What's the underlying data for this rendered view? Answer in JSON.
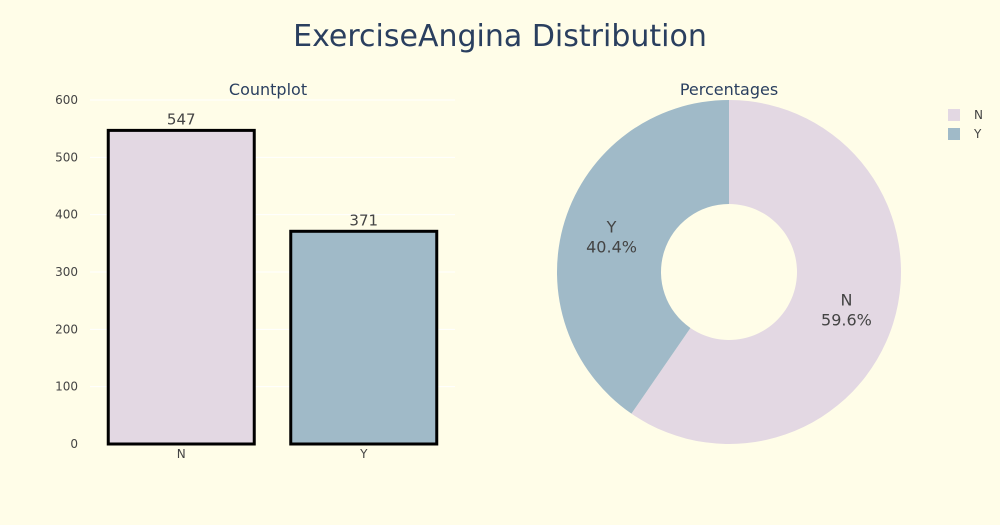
{
  "title": "ExerciseAngina Distribution",
  "chart_data": [
    {
      "type": "bar",
      "title": "Countplot",
      "categories": [
        "N",
        "Y"
      ],
      "values": [
        547,
        371
      ],
      "value_labels": [
        "547",
        "371"
      ],
      "ylim": [
        0,
        600
      ],
      "yticks": [
        "0",
        "100",
        "200",
        "300",
        "400",
        "500",
        "600"
      ],
      "colors": [
        "#e3d8e3",
        "#a0bac8"
      ],
      "edge_color": "#000000",
      "grid": true
    },
    {
      "type": "pie",
      "title": "Percentages",
      "hole": true,
      "labels": [
        "N",
        "Y"
      ],
      "values": [
        59.6,
        40.4
      ],
      "percent_labels": [
        "59.6%",
        "40.4%"
      ],
      "colors": [
        "#e3d8e3",
        "#a0bac8"
      ],
      "legend": "top-right"
    }
  ]
}
